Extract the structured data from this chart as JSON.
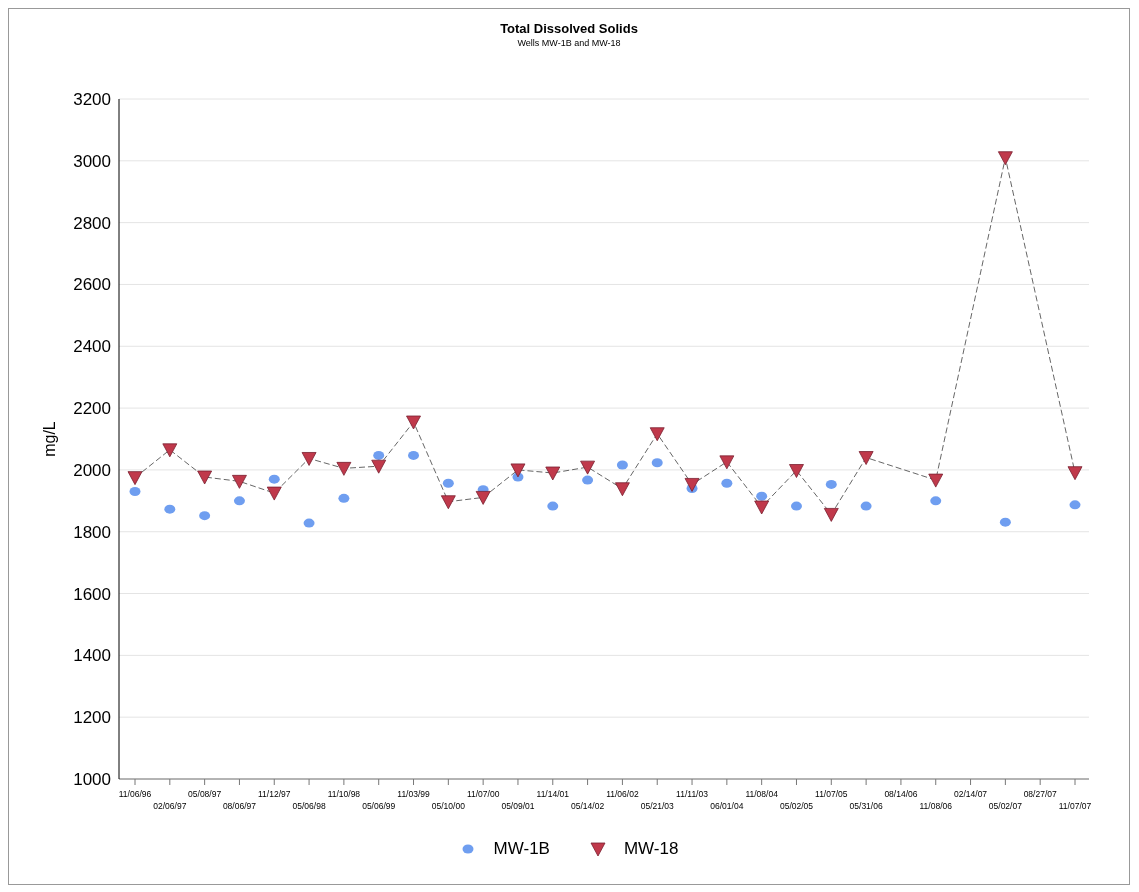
{
  "chart_data": {
    "type": "scatter",
    "title": "Total Dissolved Solids",
    "subtitle": "Wells MW-1B and MW-18",
    "ylabel": "mg/L",
    "categories": [
      "11/06/96",
      "02/06/97",
      "05/08/97",
      "08/06/97",
      "11/12/97",
      "05/06/98",
      "11/10/98",
      "05/06/99",
      "11/03/99",
      "05/10/00",
      "11/07/00",
      "05/09/01",
      "11/14/01",
      "05/14/02",
      "11/06/02",
      "05/21/03",
      "11/11/03",
      "06/01/04",
      "11/08/04",
      "05/02/05",
      "11/07/05",
      "05/31/06",
      "08/14/06",
      "11/08/06",
      "02/14/07",
      "05/02/07",
      "08/27/07",
      "11/07/07"
    ],
    "series": [
      {
        "name": "MW-1B",
        "marker": "circle",
        "color": "#6f9ef0",
        "values": [
          1930,
          1873,
          1852,
          1900,
          1970,
          1828,
          1908,
          2047,
          2047,
          1957,
          1936,
          1977,
          1883,
          1967,
          2016,
          2023,
          1940,
          1957,
          1915,
          1883,
          1953,
          1883,
          null,
          1900,
          null,
          1831,
          null,
          1887
        ]
      },
      {
        "name": "MW-18",
        "type": "line",
        "marker": "triangle",
        "line_style": "dashed",
        "color": "#c0394b",
        "values": [
          1975,
          2065,
          1977,
          1963,
          1925,
          2037,
          2005,
          2012,
          2155,
          1897,
          1911,
          2000,
          1990,
          2009,
          1939,
          2117,
          1953,
          2026,
          1880,
          1998,
          1856,
          2040,
          null,
          1967,
          null,
          3010,
          null,
          1991
        ]
      }
    ],
    "ylim": [
      1000,
      3200
    ],
    "yticks": [
      1000,
      1200,
      1400,
      1600,
      1800,
      2000,
      2200,
      2400,
      2600,
      2800,
      3000,
      3200
    ],
    "grid": "y",
    "legend": "bottom"
  }
}
